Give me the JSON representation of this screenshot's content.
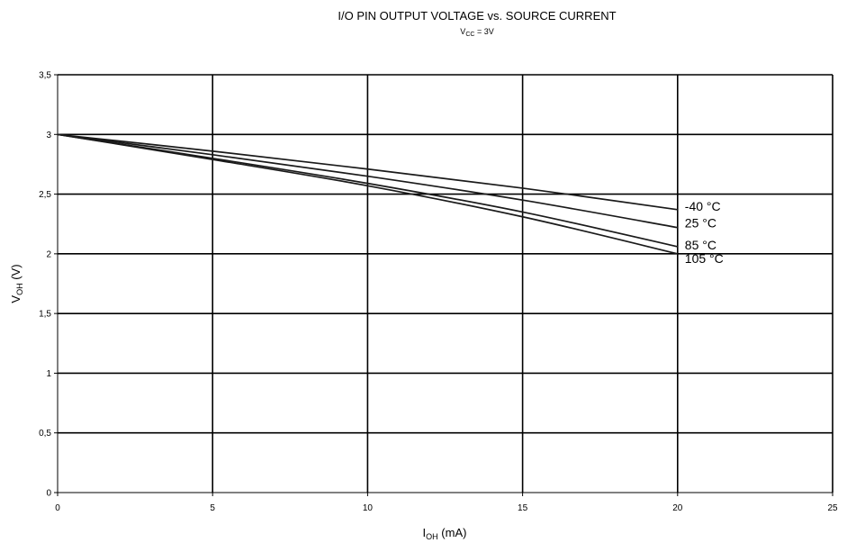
{
  "chart_data": {
    "type": "line",
    "title": "I/O PIN OUTPUT VOLTAGE vs. SOURCE CURRENT",
    "subtitle": {
      "main": "V",
      "sub": "CC",
      "rest": " = 3V"
    },
    "xlabel": {
      "main": "I",
      "sub": "OH",
      "rest": " (mA)"
    },
    "ylabel": {
      "main": "V",
      "sub": "OH",
      "rest": " (V)"
    },
    "xlim": [
      0,
      25
    ],
    "ylim": [
      0,
      3.5
    ],
    "grid": true,
    "x_ticks": [
      {
        "value": 0,
        "label": "0"
      },
      {
        "value": 5,
        "label": "5"
      },
      {
        "value": 10,
        "label": "10"
      },
      {
        "value": 15,
        "label": "15"
      },
      {
        "value": 20,
        "label": "20"
      },
      {
        "value": 25,
        "label": "25"
      }
    ],
    "y_ticks": [
      {
        "value": 0,
        "label": "0"
      },
      {
        "value": 0.5,
        "label": "0,5"
      },
      {
        "value": 1,
        "label": "1"
      },
      {
        "value": 1.5,
        "label": "1,5"
      },
      {
        "value": 2,
        "label": "2"
      },
      {
        "value": 2.5,
        "label": "2,5"
      },
      {
        "value": 3,
        "label": "3"
      },
      {
        "value": 3.5,
        "label": "3,5"
      }
    ],
    "series": [
      {
        "name": "-40 °C",
        "x": [
          0,
          5,
          10,
          15,
          20
        ],
        "y": [
          3.0,
          2.86,
          2.71,
          2.55,
          2.37
        ]
      },
      {
        "name": "25 °C",
        "x": [
          0,
          5,
          10,
          15,
          20
        ],
        "y": [
          3.0,
          2.83,
          2.65,
          2.45,
          2.22
        ]
      },
      {
        "name": "85 °C",
        "x": [
          0,
          5,
          10,
          15,
          20
        ],
        "y": [
          3.0,
          2.8,
          2.59,
          2.35,
          2.06
        ]
      },
      {
        "name": "105 °C",
        "x": [
          0,
          5,
          10,
          15,
          20
        ],
        "y": [
          3.0,
          2.79,
          2.57,
          2.31,
          2.0
        ]
      }
    ]
  }
}
